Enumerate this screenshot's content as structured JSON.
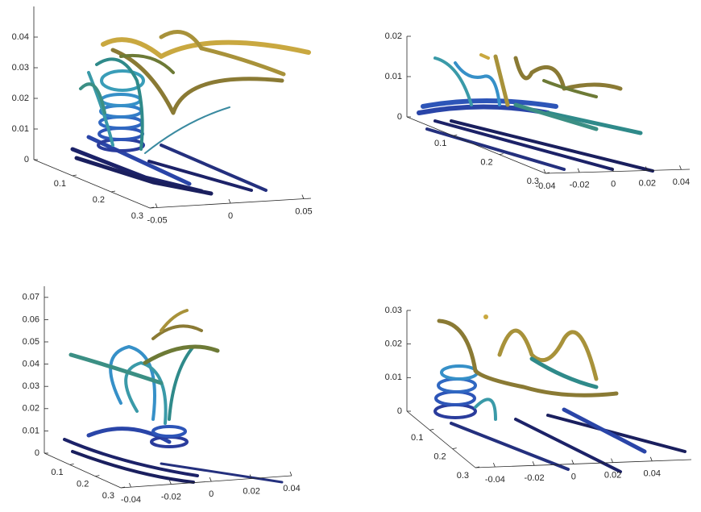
{
  "chart_data": [
    {
      "type": "streamtube3d",
      "zlim": [
        0,
        0.05
      ],
      "zticks": [
        0,
        0.01,
        0.02,
        0.03,
        0.04
      ],
      "ylim": [
        0,
        0.3
      ],
      "yticks": [
        0.1,
        0.2,
        0.3
      ],
      "xlim": [
        -0.055,
        0.055
      ],
      "xticks": [
        -0.05,
        0,
        0.05
      ]
    },
    {
      "type": "streamtube3d",
      "zlim": [
        0,
        0.02
      ],
      "zticks": [
        0,
        0.01,
        0.02
      ],
      "ylim": [
        0,
        0.3
      ],
      "yticks": [
        0.1,
        0.2,
        0.3
      ],
      "xlim": [
        -0.04,
        0.045
      ],
      "xticks": [
        -0.04,
        -0.02,
        0,
        0.02,
        0.04
      ]
    },
    {
      "type": "streamtube3d",
      "zlim": [
        0,
        0.075
      ],
      "zticks": [
        0,
        0.01,
        0.02,
        0.03,
        0.04,
        0.05,
        0.06,
        0.07
      ],
      "ylim": [
        0,
        0.3
      ],
      "yticks": [
        0.1,
        0.2,
        0.3
      ],
      "xlim": [
        -0.045,
        0.04
      ],
      "xticks": [
        -0.04,
        -0.02,
        0,
        0.02,
        0.04
      ]
    },
    {
      "type": "streamtube3d",
      "zlim": [
        0,
        0.03
      ],
      "zticks": [
        0,
        0.01,
        0.02,
        0.03
      ],
      "ylim": [
        0,
        0.3
      ],
      "yticks": [
        0.1,
        0.2,
        0.3
      ],
      "xlim": [
        -0.05,
        0.06
      ],
      "xticks": [
        -0.04,
        -0.02,
        0,
        0.02,
        0.04
      ]
    }
  ]
}
